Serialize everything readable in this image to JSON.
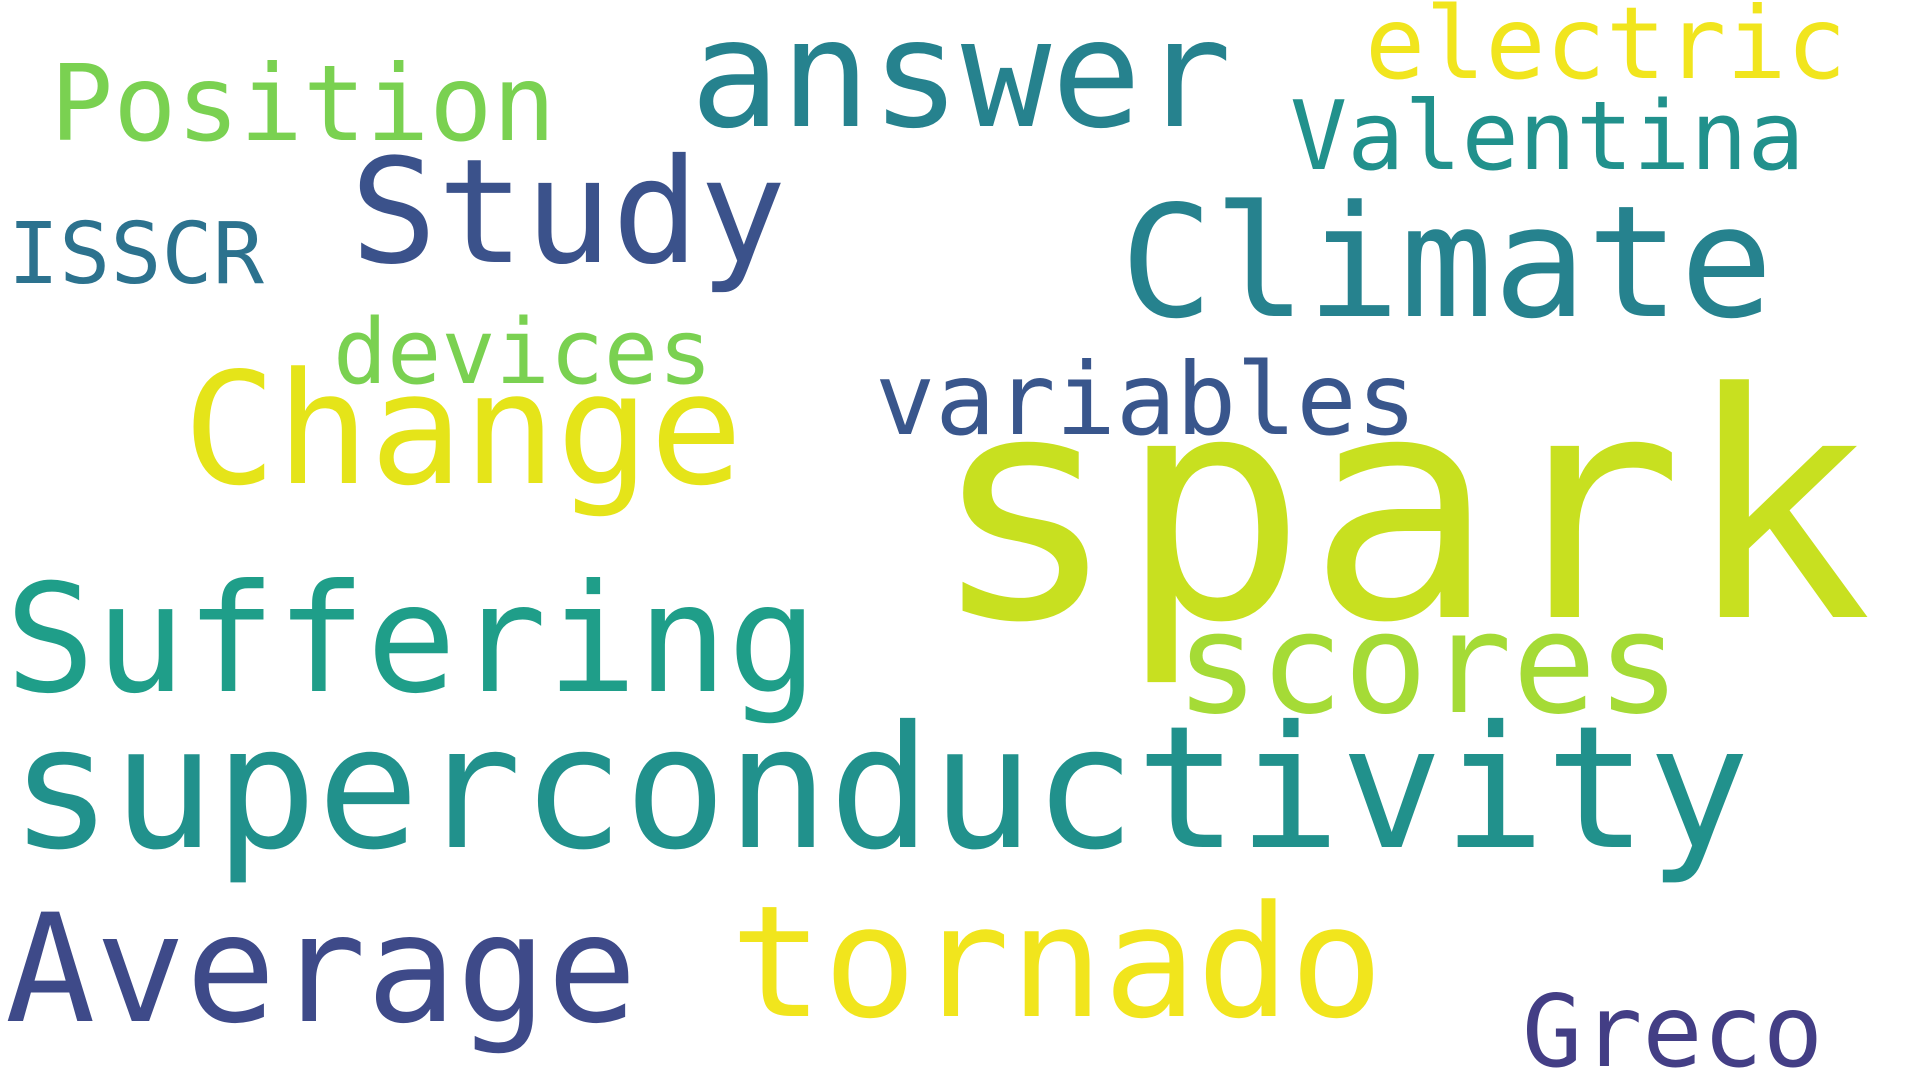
{
  "words": {
    "spark": {
      "text": "spark",
      "color": "#c8e020"
    },
    "superconductivity": {
      "text": "superconductivity",
      "color": "#21918c"
    },
    "climate": {
      "text": "Climate",
      "color": "#26828e"
    },
    "suffering": {
      "text": "Suffering",
      "color": "#1f9e89"
    },
    "change": {
      "text": "Change",
      "color": "#e5e419"
    },
    "scores": {
      "text": "scores",
      "color": "#a5db36"
    },
    "answer": {
      "text": "answer",
      "color": "#26828e"
    },
    "study": {
      "text": "Study",
      "color": "#3b528b"
    },
    "average": {
      "text": "Average",
      "color": "#3e4a89"
    },
    "tornado": {
      "text": "tornado",
      "color": "#f1e51d"
    },
    "position": {
      "text": "Position",
      "color": "#7ad151"
    },
    "electric": {
      "text": "electric",
      "color": "#f1e51d"
    },
    "valentina": {
      "text": "Valentina",
      "color": "#21918c"
    },
    "variables": {
      "text": "variables",
      "color": "#39568c"
    },
    "devices": {
      "text": "devices",
      "color": "#7ad151"
    },
    "isscr": {
      "text": "ISSCR",
      "color": "#2c728e"
    },
    "greco": {
      "text": "Greco",
      "color": "#433e85"
    }
  }
}
